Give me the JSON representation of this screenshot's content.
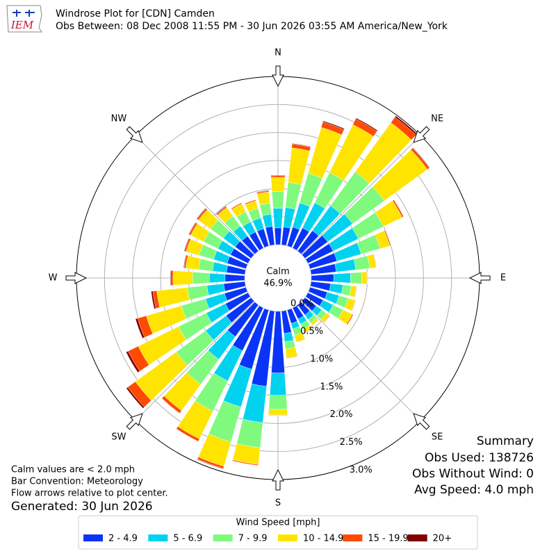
{
  "chart_data": {
    "type": "windrose",
    "title": "Windrose Plot for [CDN] Camden",
    "subtitle": "Obs Between: 08 Dec 2008 11:55 PM - 30 Jun 2026 03:55 AM America/New_York",
    "logo": "IEM",
    "x": [
      0,
      10,
      20,
      30,
      40,
      50,
      60,
      70,
      80,
      90,
      100,
      110,
      120,
      130,
      140,
      150,
      160,
      170,
      180,
      190,
      200,
      210,
      220,
      230,
      240,
      250,
      260,
      270,
      280,
      290,
      300,
      310,
      320,
      330,
      340,
      350
    ],
    "xlim": [
      0,
      360
    ],
    "xticks": [
      {
        "value": 0,
        "label": "N"
      },
      {
        "value": 45,
        "label": "NE"
      },
      {
        "value": 90,
        "label": "E"
      },
      {
        "value": 135,
        "label": "SE"
      },
      {
        "value": 180,
        "label": "S"
      },
      {
        "value": 225,
        "label": "SW"
      },
      {
        "value": 270,
        "label": "W"
      },
      {
        "value": 315,
        "label": "NW"
      }
    ],
    "ylim": [
      0,
      3.0
    ],
    "yticks": [
      {
        "value": 0,
        "label": "0.0%"
      },
      {
        "value": 0.5,
        "label": "0.5%"
      },
      {
        "value": 1.0,
        "label": "1.0%"
      },
      {
        "value": 1.5,
        "label": "1.5%"
      },
      {
        "value": 2.0,
        "label": "2.0%"
      },
      {
        "value": 2.5,
        "label": "2.5%"
      },
      {
        "value": 3.0,
        "label": "3.0%"
      }
    ],
    "grid": true,
    "calm_label": "Calm",
    "calm_value": 46.9,
    "calm_value_label": "46.9%",
    "legend_title": "Wind Speed [mph]",
    "series": [
      {
        "name": "2 - 4.9",
        "color": "#0a34f5",
        "values": [
          0.3,
          0.32,
          0.35,
          0.4,
          0.45,
          0.5,
          0.5,
          0.5,
          0.45,
          0.4,
          0.35,
          0.32,
          0.3,
          0.25,
          0.22,
          0.22,
          0.25,
          0.4,
          1.1,
          1.35,
          1.1,
          0.85,
          0.7,
          0.55,
          0.45,
          0.4,
          0.38,
          0.35,
          0.33,
          0.35,
          0.35,
          0.35,
          0.33,
          0.32,
          0.32,
          0.33
        ]
      },
      {
        "name": "5 - 6.9",
        "color": "#00d2f0",
        "values": [
          0.35,
          0.35,
          0.45,
          0.5,
          0.55,
          0.55,
          0.5,
          0.45,
          0.35,
          0.3,
          0.22,
          0.22,
          0.2,
          0.12,
          0.1,
          0.1,
          0.1,
          0.15,
          0.4,
          0.65,
          0.7,
          0.6,
          0.5,
          0.45,
          0.38,
          0.35,
          0.3,
          0.28,
          0.25,
          0.25,
          0.25,
          0.26,
          0.22,
          0.2,
          0.2,
          0.22
        ]
      },
      {
        "name": "7 - 9.9",
        "color": "#7ffa7f",
        "values": [
          0.3,
          0.45,
          0.55,
          0.6,
          0.75,
          0.7,
          0.5,
          0.35,
          0.25,
          0.2,
          0.15,
          0.17,
          0.2,
          0.1,
          0.08,
          0.1,
          0.12,
          0.13,
          0.25,
          0.45,
          0.65,
          0.6,
          0.55,
          0.65,
          0.55,
          0.45,
          0.35,
          0.3,
          0.25,
          0.27,
          0.28,
          0.28,
          0.22,
          0.2,
          0.18,
          0.2
        ]
      },
      {
        "name": "10 - 14.9",
        "color": "#ffe400",
        "values": [
          0.25,
          0.62,
          0.85,
          0.95,
          1.08,
          0.95,
          0.37,
          0.18,
          0.11,
          0.09,
          0.09,
          0.13,
          0.18,
          0.07,
          0.05,
          0.07,
          0.12,
          0.16,
          0.1,
          0.3,
          0.45,
          0.55,
          0.58,
          0.9,
          0.8,
          0.65,
          0.55,
          0.35,
          0.23,
          0.24,
          0.26,
          0.27,
          0.19,
          0.16,
          0.14,
          0.2
        ]
      },
      {
        "name": "15 - 19.9",
        "color": "#ff4a00",
        "values": [
          0.03,
          0.07,
          0.1,
          0.11,
          0.12,
          0.04,
          0.03,
          0.02,
          0.01,
          0.01,
          0.01,
          0.01,
          0.02,
          0.01,
          0,
          0.01,
          0.01,
          0.01,
          0.01,
          0.02,
          0.04,
          0.05,
          0.06,
          0.17,
          0.2,
          0.16,
          0.07,
          0.04,
          0.03,
          0.03,
          0.03,
          0.03,
          0.02,
          0.02,
          0.02,
          0.02
        ]
      },
      {
        "name": "20+",
        "color": "#7f0000",
        "values": [
          0.01,
          0.01,
          0.02,
          0.02,
          0.03,
          0.01,
          0,
          0,
          0,
          0,
          0,
          0,
          0,
          0,
          0,
          0,
          0,
          0,
          0,
          0,
          0.01,
          0,
          0,
          0.03,
          0.04,
          0.04,
          0.03,
          0.01,
          0.01,
          0.01,
          0.01,
          0.01,
          0.01,
          0,
          0,
          0.01
        ]
      }
    ],
    "notes": [
      "Calm values are < 2.0 mph",
      "Bar Convention: Meteorology",
      "Flow arrows relative to plot center."
    ],
    "generated": "Generated: 30 Jun 2026",
    "summary": [
      "Summary",
      "Obs Used: 138726",
      "Obs Without Wind: 0",
      "Avg Speed: 4.0 mph"
    ]
  }
}
